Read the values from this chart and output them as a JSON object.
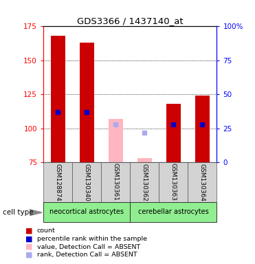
{
  "title": "GDS3366 / 1437140_at",
  "samples": [
    "GSM128874",
    "GSM130340",
    "GSM130361",
    "GSM130362",
    "GSM130363",
    "GSM130364"
  ],
  "bar_bottom": 75,
  "counts": [
    168,
    163,
    null,
    null,
    118,
    124
  ],
  "percentiles": [
    112,
    112,
    null,
    null,
    103,
    103
  ],
  "absent_values": [
    null,
    null,
    107,
    78,
    null,
    null
  ],
  "absent_ranks": [
    null,
    null,
    103,
    97,
    null,
    null
  ],
  "ylim_left": [
    75,
    175
  ],
  "ylim_right": [
    0,
    100
  ],
  "yticks_left": [
    75,
    100,
    125,
    150,
    175
  ],
  "yticks_right": [
    0,
    25,
    50,
    75,
    100
  ],
  "ytick_labels_right": [
    "0",
    "25",
    "50",
    "75",
    "100%"
  ],
  "bar_color_present": "#cc0000",
  "bar_color_absent": "#ffb6c1",
  "percentile_color_present": "#0000cc",
  "percentile_color_absent": "#aaaaee",
  "group1_label": "neocortical astrocytes",
  "group2_label": "cerebellar astrocytes",
  "group1_color": "#90EE90",
  "group2_color": "#90EE90",
  "cell_type_label": "cell type",
  "legend_items": [
    {
      "label": "count",
      "color": "#cc0000"
    },
    {
      "label": "percentile rank within the sample",
      "color": "#0000cc"
    },
    {
      "label": "value, Detection Call = ABSENT",
      "color": "#ffb6c1"
    },
    {
      "label": "rank, Detection Call = ABSENT",
      "color": "#aaaaee"
    }
  ]
}
